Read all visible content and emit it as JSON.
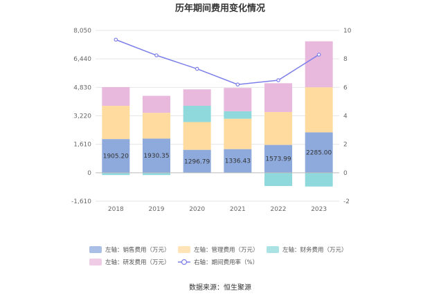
{
  "chart_data": {
    "type": "bar",
    "title": "历年期间费用变化情况",
    "source": "数据来源：恒生聚源",
    "categories": [
      "2018",
      "2019",
      "2020",
      "2021",
      "2022",
      "2023"
    ],
    "left_axis": {
      "ticks": [
        "8,050",
        "6,440",
        "4,830",
        "3,220",
        "1,610",
        "0",
        "-1,610"
      ],
      "ylim": [
        -1610,
        8050
      ]
    },
    "right_axis": {
      "ticks": [
        "10",
        "8",
        "6",
        "4",
        "2",
        "0",
        "-2"
      ],
      "ylim": [
        -2,
        10
      ]
    },
    "stack_series": [
      {
        "name": "左轴：销售费用（万元）",
        "color": "#8eaadc",
        "values": [
          1905.2,
          1930.35,
          1296.79,
          1336.43,
          1573.99,
          2285.0
        ],
        "labels": [
          "1905.20",
          "1930.35",
          "1296.79",
          "1336.43",
          "1573.99",
          "2285.00"
        ]
      },
      {
        "name": "左轴：管理费用（万元）",
        "color": "#ffdba0",
        "values": [
          1880,
          1460,
          1570,
          1720,
          1860,
          2550
        ]
      },
      {
        "name": "左轴：财务费用（万元）",
        "color": "#8fd9dc",
        "values": [
          -130,
          -130,
          920,
          420,
          -750,
          -780
        ]
      },
      {
        "name": "左轴：研发费用（万元）",
        "color": "#e9b9dd",
        "values": [
          1060,
          960,
          930,
          1320,
          1630,
          2600
        ]
      }
    ],
    "line_series": {
      "name": "右轴：期间费用率（%）",
      "color": "#7b7ee8",
      "values": [
        9.35,
        8.25,
        7.3,
        6.2,
        6.5,
        8.3
      ]
    },
    "legend_position": "bottom",
    "grid": true
  }
}
